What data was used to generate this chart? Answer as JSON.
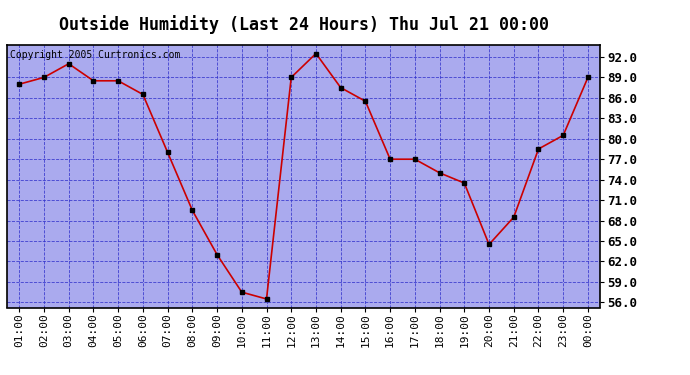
{
  "title": "Outside Humidity (Last 24 Hours) Thu Jul 21 00:00",
  "copyright": "Copyright 2005 Curtronics.com",
  "x_labels": [
    "01:00",
    "02:00",
    "03:00",
    "04:00",
    "05:00",
    "06:00",
    "07:00",
    "08:00",
    "09:00",
    "10:00",
    "11:00",
    "12:00",
    "13:00",
    "14:00",
    "15:00",
    "16:00",
    "17:00",
    "18:00",
    "19:00",
    "20:00",
    "21:00",
    "22:00",
    "23:00",
    "00:00"
  ],
  "x_values": [
    1,
    2,
    3,
    4,
    5,
    6,
    7,
    8,
    9,
    10,
    11,
    12,
    13,
    14,
    15,
    16,
    17,
    18,
    19,
    20,
    21,
    22,
    23,
    24
  ],
  "y_values": [
    88.0,
    89.0,
    91.0,
    88.5,
    88.5,
    86.5,
    78.0,
    69.5,
    63.0,
    57.5,
    56.5,
    89.0,
    92.5,
    87.5,
    85.5,
    77.0,
    77.0,
    75.0,
    73.5,
    64.5,
    68.5,
    78.5,
    80.5,
    89.0
  ],
  "ylim": [
    55.25,
    93.75
  ],
  "yticks": [
    56.0,
    59.0,
    62.0,
    65.0,
    68.0,
    71.0,
    74.0,
    77.0,
    80.0,
    83.0,
    86.0,
    89.0,
    92.0
  ],
  "line_color": "#cc0000",
  "marker_color": "#000000",
  "bg_color": "#aaaaee",
  "grid_color": "#3333cc",
  "title_fontsize": 12,
  "copyright_fontsize": 7,
  "tick_fontsize": 8,
  "ytick_fontsize": 9,
  "outer_bg": "#ffffff",
  "border_color": "#000000"
}
